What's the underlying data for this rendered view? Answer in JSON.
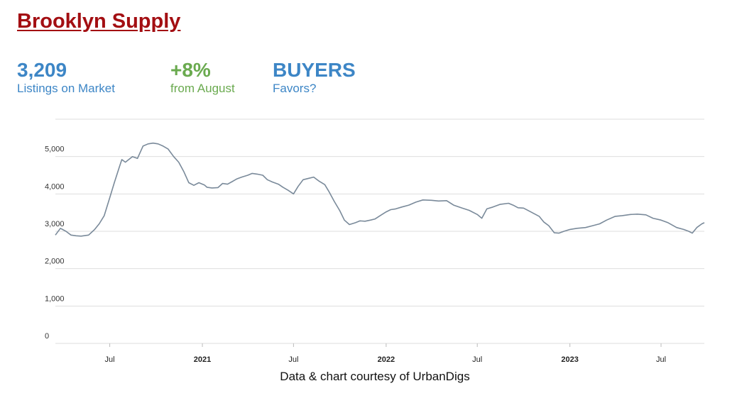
{
  "header": {
    "title": "Brooklyn Supply"
  },
  "stats": [
    {
      "value": "3,209",
      "label": "Listings on Market",
      "color": "#3d86c6"
    },
    {
      "value": "+8%",
      "label": "from August",
      "color": "#6aaa4f"
    },
    {
      "value": "BUYERS",
      "label": "Favors?",
      "color": "#3d86c6"
    }
  ],
  "chart_data": {
    "type": "line",
    "title": "",
    "xlabel": "",
    "ylabel": "",
    "ylim": [
      0,
      6000
    ],
    "yticks": [
      0,
      1000,
      2000,
      3000,
      4000,
      5000
    ],
    "ytick_labels": [
      "0",
      "1,000",
      "2,000",
      "3,000",
      "4,000",
      "5,000"
    ],
    "xlim": [
      "2020-03-15",
      "2023-09-25"
    ],
    "xticks": [
      {
        "date": "2020-07-01",
        "label": "Jul",
        "bold": false
      },
      {
        "date": "2021-01-01",
        "label": "2021",
        "bold": true
      },
      {
        "date": "2021-07-01",
        "label": "Jul",
        "bold": false
      },
      {
        "date": "2022-01-01",
        "label": "2022",
        "bold": true
      },
      {
        "date": "2022-07-01",
        "label": "Jul",
        "bold": false
      },
      {
        "date": "2023-01-01",
        "label": "2023",
        "bold": true
      },
      {
        "date": "2023-07-01",
        "label": "Jul",
        "bold": false
      }
    ],
    "grid": true,
    "line_color": "#7a8a9a",
    "x": [
      "2020-03-15",
      "2020-03-25",
      "2020-04-05",
      "2020-04-15",
      "2020-04-25",
      "2020-05-05",
      "2020-05-20",
      "2020-06-01",
      "2020-06-10",
      "2020-06-20",
      "2020-07-01",
      "2020-07-10",
      "2020-07-20",
      "2020-07-25",
      "2020-08-01",
      "2020-08-15",
      "2020-08-25",
      "2020-09-05",
      "2020-09-15",
      "2020-09-25",
      "2020-10-05",
      "2020-10-15",
      "2020-10-25",
      "2020-11-05",
      "2020-11-15",
      "2020-11-25",
      "2020-12-05",
      "2020-12-15",
      "2020-12-25",
      "2021-01-05",
      "2021-01-10",
      "2021-01-20",
      "2021-02-01",
      "2021-02-10",
      "2021-02-20",
      "2021-03-01",
      "2021-03-10",
      "2021-03-20",
      "2021-04-01",
      "2021-04-10",
      "2021-04-20",
      "2021-05-01",
      "2021-05-10",
      "2021-05-20",
      "2021-06-01",
      "2021-06-10",
      "2021-06-20",
      "2021-07-01",
      "2021-07-10",
      "2021-07-20",
      "2021-08-01",
      "2021-08-10",
      "2021-08-20",
      "2021-09-01",
      "2021-09-10",
      "2021-09-20",
      "2021-10-01",
      "2021-10-10",
      "2021-10-20",
      "2021-11-01",
      "2021-11-10",
      "2021-11-20",
      "2021-12-01",
      "2021-12-10",
      "2021-12-20",
      "2022-01-01",
      "2022-01-10",
      "2022-01-20",
      "2022-02-01",
      "2022-02-15",
      "2022-03-01",
      "2022-03-15",
      "2022-04-01",
      "2022-04-15",
      "2022-05-01",
      "2022-05-15",
      "2022-06-01",
      "2022-06-15",
      "2022-07-01",
      "2022-07-10",
      "2022-07-20",
      "2022-08-01",
      "2022-08-15",
      "2022-09-01",
      "2022-09-10",
      "2022-09-20",
      "2022-10-01",
      "2022-10-15",
      "2022-11-01",
      "2022-11-10",
      "2022-11-20",
      "2022-12-01",
      "2022-12-10",
      "2022-12-20",
      "2023-01-01",
      "2023-01-15",
      "2023-02-01",
      "2023-02-15",
      "2023-03-01",
      "2023-03-15",
      "2023-04-01",
      "2023-04-15",
      "2023-05-01",
      "2023-05-15",
      "2023-06-01",
      "2023-06-15",
      "2023-07-01",
      "2023-07-15",
      "2023-08-01",
      "2023-08-15",
      "2023-08-25",
      "2023-09-01",
      "2023-09-10",
      "2023-09-20",
      "2023-09-25"
    ],
    "y": [
      2900,
      3080,
      3000,
      2900,
      2880,
      2870,
      2900,
      3050,
      3200,
      3420,
      3900,
      4300,
      4720,
      4920,
      4850,
      5000,
      4950,
      5280,
      5340,
      5360,
      5340,
      5280,
      5200,
      5000,
      4850,
      4600,
      4300,
      4230,
      4300,
      4240,
      4180,
      4160,
      4170,
      4280,
      4260,
      4330,
      4400,
      4450,
      4500,
      4550,
      4530,
      4500,
      4380,
      4320,
      4260,
      4180,
      4100,
      4000,
      4200,
      4380,
      4420,
      4450,
      4350,
      4250,
      4050,
      3800,
      3550,
      3300,
      3180,
      3230,
      3280,
      3270,
      3300,
      3330,
      3420,
      3520,
      3580,
      3600,
      3650,
      3700,
      3780,
      3840,
      3830,
      3810,
      3820,
      3700,
      3620,
      3560,
      3450,
      3350,
      3600,
      3650,
      3720,
      3750,
      3700,
      3630,
      3620,
      3520,
      3400,
      3250,
      3150,
      2960,
      2950,
      3000,
      3050,
      3080,
      3100,
      3150,
      3200,
      3300,
      3400,
      3420,
      3450,
      3460,
      3440,
      3350,
      3300,
      3230,
      3100,
      3050,
      3000,
      2950,
      3100,
      3200,
      3230
    ]
  },
  "credit": "Data & chart courtesy of UrbanDigs"
}
